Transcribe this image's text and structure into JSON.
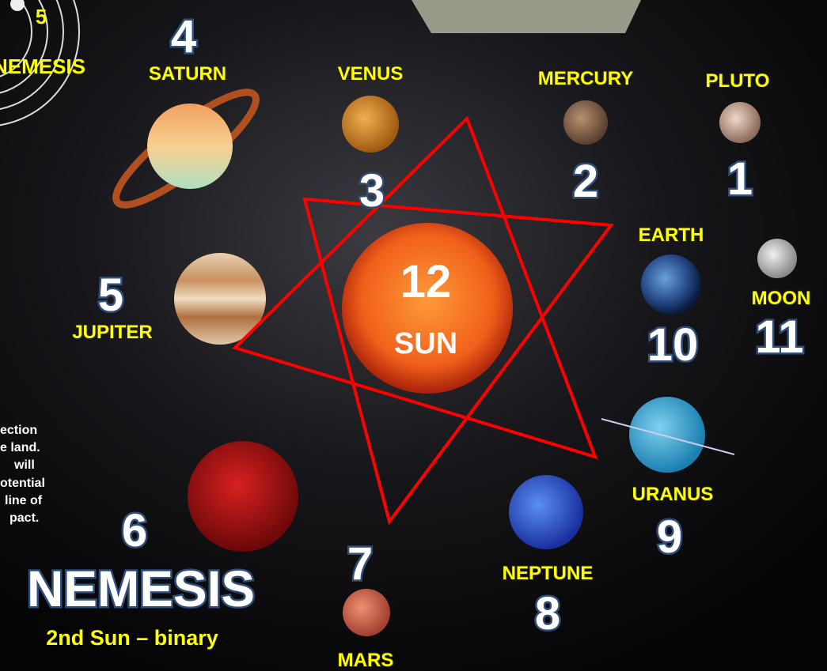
{
  "corner": {
    "number": "5",
    "label": "NEMESIS"
  },
  "side_note": [
    "ection",
    "e land.",
    "will",
    "otential",
    "line of",
    "pact."
  ],
  "planets": [
    {
      "name": "PLUTO",
      "number": "1"
    },
    {
      "name": "MERCURY",
      "number": "2"
    },
    {
      "name": "VENUS",
      "number": "3"
    },
    {
      "name": "SATURN",
      "number": "4"
    },
    {
      "name": "JUPITER",
      "number": "5"
    },
    {
      "name": "EARTH",
      "number": "10"
    },
    {
      "name": "MOON",
      "number": "11"
    },
    {
      "name": "URANUS",
      "number": "9"
    },
    {
      "name": "NEPTUNE",
      "number": "8"
    },
    {
      "name": "MARS",
      "number": "7"
    }
  ],
  "sun": {
    "number": "12",
    "name": "SUN"
  },
  "nemesis": {
    "number": "6",
    "title": "NEMESIS",
    "subtitle": "2nd Sun – binary"
  }
}
